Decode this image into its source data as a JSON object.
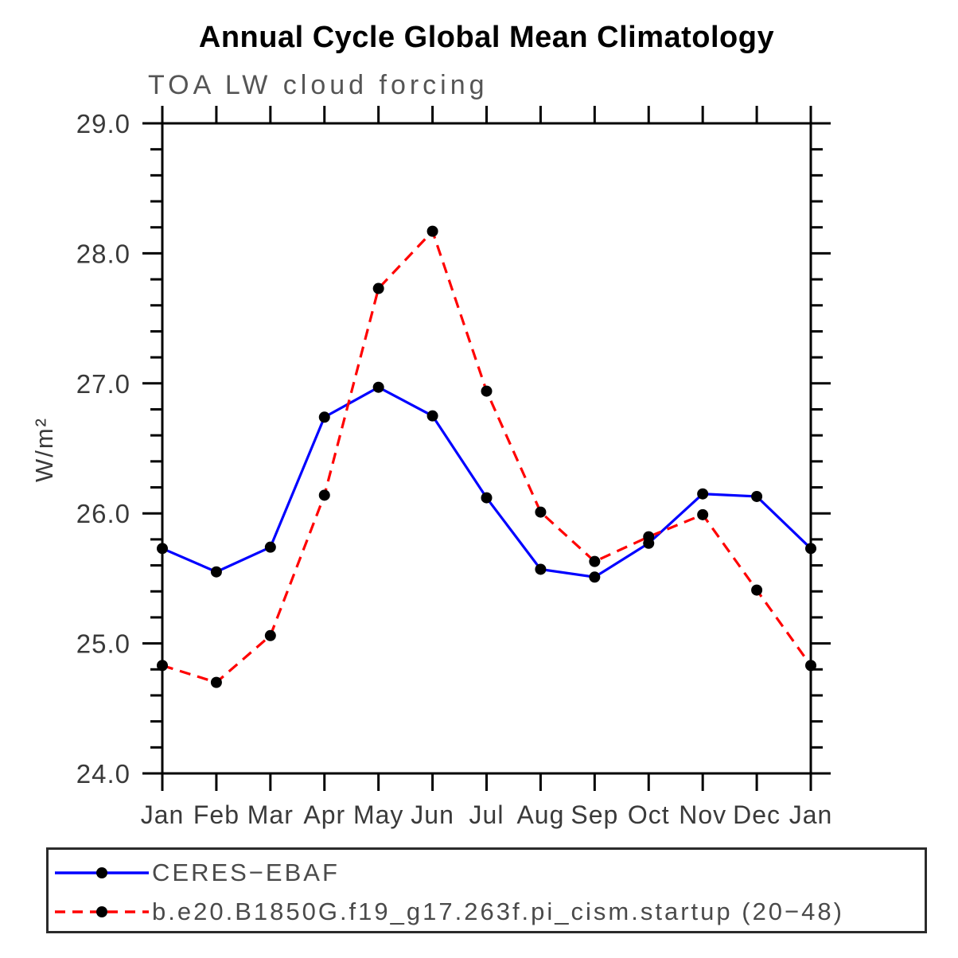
{
  "chart_data": {
    "type": "line",
    "title": "Annual Cycle Global Mean Climatology",
    "subtitle": "TOA LW cloud forcing",
    "ylabel": "W/m²",
    "xlabel": "",
    "categories": [
      "Jan",
      "Feb",
      "Mar",
      "Apr",
      "May",
      "Jun",
      "Jul",
      "Aug",
      "Sep",
      "Oct",
      "Nov",
      "Dec",
      "Jan"
    ],
    "ylim": [
      24.0,
      29.0
    ],
    "y_major_tick_step": 1.0,
    "y_minor_tick_step": 0.2,
    "y_tick_labels": [
      "29.0",
      "28.0",
      "27.0",
      "26.0",
      "25.0",
      "24.0"
    ],
    "grid": false,
    "legend_position": "bottom-box",
    "axis_color": "#000000",
    "tick_label_color": "#3a3a3a",
    "series": [
      {
        "name": "CERES−EBAF",
        "color": "#0000ff",
        "line_style": "solid",
        "marker": "filled-circle",
        "marker_color": "#000000",
        "values": [
          25.73,
          25.55,
          25.74,
          26.74,
          26.97,
          26.75,
          26.12,
          25.57,
          25.51,
          25.77,
          26.15,
          26.13,
          25.73
        ]
      },
      {
        "name": "b.e20.B1850G.f19_g17.263f.pi_cism.startup (20−48)",
        "color": "#ff0000",
        "line_style": "dashed",
        "marker": "filled-circle",
        "marker_color": "#000000",
        "values": [
          24.83,
          24.7,
          25.06,
          26.14,
          27.73,
          28.17,
          26.94,
          26.01,
          25.63,
          25.82,
          25.99,
          25.41,
          24.83
        ]
      }
    ]
  }
}
